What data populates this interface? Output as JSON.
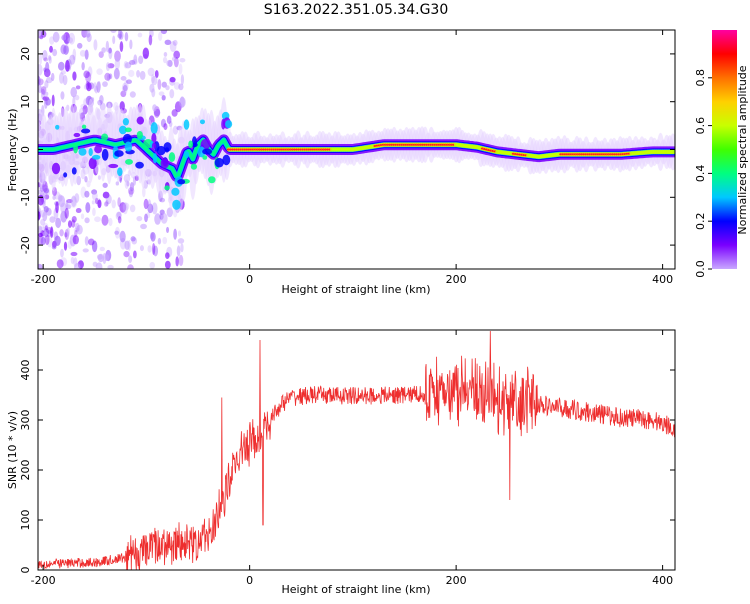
{
  "title": "S163.2022.351.05.34.G30",
  "chart_data": [
    {
      "type": "heatmap",
      "name": "spectrogram",
      "xlabel": "Height of straight line (km)",
      "ylabel": "Frequency (Hz)",
      "xlim": [
        -205,
        412
      ],
      "ylim": [
        -25,
        25
      ],
      "xticks": [
        -200,
        0,
        200,
        400
      ],
      "yticks": [
        -20,
        -10,
        0,
        10,
        20
      ],
      "colorbar": {
        "label": "Normalized spectral amplitude",
        "range": [
          0,
          1
        ],
        "ticks": [
          0.0,
          0.2,
          0.4,
          0.6,
          0.8
        ],
        "colors": [
          "#ffffff",
          "#c9a8ff",
          "#7a00ff",
          "#0000ff",
          "#00c8ff",
          "#00ff80",
          "#40ff00",
          "#c8ff00",
          "#ffd000",
          "#ff7000",
          "#ff0000",
          "#ff00a0"
        ]
      },
      "ridge": {
        "x": [
          -190,
          -170,
          -150,
          -130,
          -110,
          -95,
          -85,
          -75,
          -70,
          -65,
          -60,
          -55,
          -50,
          -45,
          -40,
          -35,
          -30,
          -25,
          -20,
          0,
          50,
          100,
          130,
          160,
          190,
          200,
          220,
          240,
          260,
          280,
          300,
          330,
          360,
          390,
          410
        ],
        "y": [
          0,
          1,
          2,
          1,
          2,
          -1,
          -3,
          -4,
          -6,
          -3,
          0,
          -2,
          1,
          2,
          0,
          -1,
          1,
          2,
          0,
          0,
          0,
          0,
          1,
          1,
          1,
          1,
          0.5,
          -0.5,
          -1,
          -1.5,
          -1,
          -1,
          -1,
          -0.5,
          -0.5
        ]
      }
    },
    {
      "type": "line",
      "name": "snr",
      "xlabel": "Height of straight line (km)",
      "ylabel": "SNR (10 * v/v)",
      "xlim": [
        -205,
        412
      ],
      "ylim": [
        0,
        480
      ],
      "xticks": [
        -200,
        0,
        200,
        400
      ],
      "yticks": [
        0,
        100,
        200,
        300,
        400
      ],
      "color": "#ee2e2e",
      "trend": {
        "x": [
          -205,
          -150,
          -120,
          -100,
          -80,
          -60,
          -40,
          -30,
          -20,
          -10,
          0,
          10,
          20,
          30,
          40,
          60,
          100,
          150,
          180,
          200,
          220,
          240,
          260,
          280,
          300,
          330,
          360,
          390,
          412
        ],
        "y": [
          12,
          15,
          25,
          40,
          55,
          50,
          70,
          110,
          180,
          230,
          255,
          270,
          300,
          330,
          345,
          350,
          348,
          350,
          355,
          355,
          350,
          340,
          335,
          330,
          325,
          315,
          305,
          300,
          285
        ]
      },
      "spikes": [
        {
          "x": -27,
          "y": 345
        },
        {
          "x": 10,
          "y": 460
        },
        {
          "x": 13,
          "y": 90
        },
        {
          "x": 233,
          "y": 478
        },
        {
          "x": 252,
          "y": 140
        }
      ]
    }
  ]
}
